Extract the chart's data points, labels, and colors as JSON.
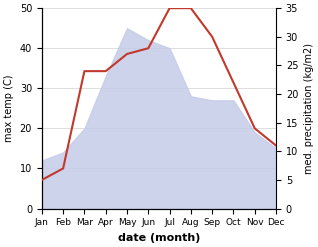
{
  "months": [
    "Jan",
    "Feb",
    "Mar",
    "Apr",
    "May",
    "Jun",
    "Jul",
    "Aug",
    "Sep",
    "Oct",
    "Nov",
    "Dec"
  ],
  "temperature": [
    12,
    14,
    20,
    33,
    45,
    42,
    40,
    28,
    27,
    27,
    19,
    15
  ],
  "precipitation": [
    5,
    7,
    24,
    24,
    27,
    28,
    35,
    35,
    30,
    22,
    14,
    11
  ],
  "temp_fill_color": "#c5cce8",
  "temp_fill_alpha": 0.85,
  "precip_color": "#c0392b",
  "temp_ylim": [
    0,
    50
  ],
  "precip_ylim": [
    0,
    35
  ],
  "xlabel": "date (month)",
  "ylabel_left": "max temp (C)",
  "ylabel_right": "med. precipitation (kg/m2)",
  "background_color": "#ffffff",
  "grid_color": "#d0d0d0",
  "yticks_left": [
    0,
    10,
    20,
    30,
    40,
    50
  ],
  "yticks_right": [
    0,
    5,
    10,
    15,
    20,
    25,
    30,
    35
  ]
}
